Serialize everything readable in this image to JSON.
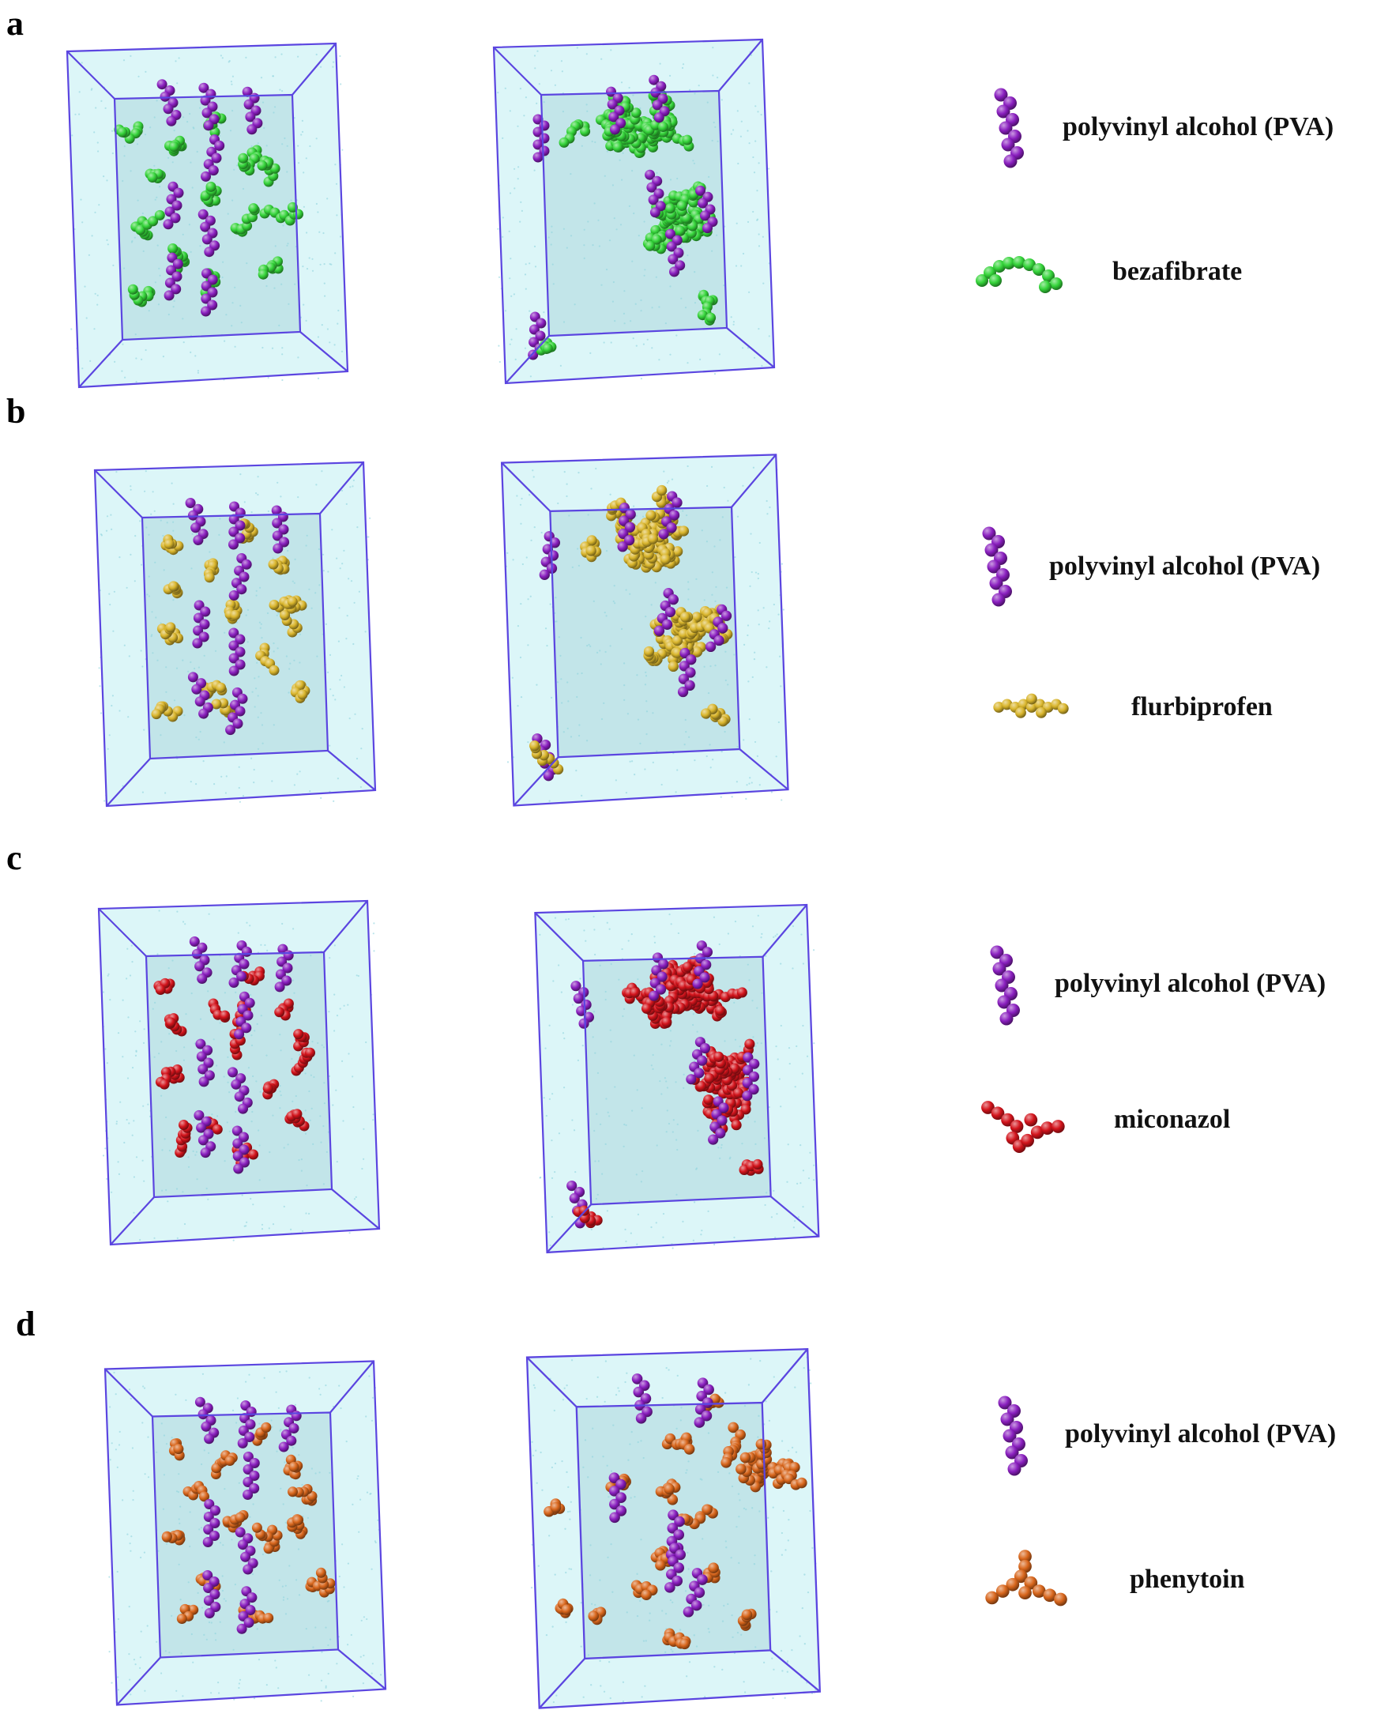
{
  "panels": [
    {
      "label": "a",
      "legend": {
        "polymer": "polyvinyl alcohol (PVA)",
        "drug": "bezafibrate"
      },
      "colors": {
        "polymer": "#8a1fbf",
        "drug": "#35d43a"
      }
    },
    {
      "label": "b",
      "legend": {
        "polymer": "polyvinyl alcohol (PVA)",
        "drug": "flurbiprofen"
      },
      "colors": {
        "polymer": "#8a1fbf",
        "drug": "#d9b52c"
      }
    },
    {
      "label": "c",
      "legend": {
        "polymer": "polyvinyl alcohol (PVA)",
        "drug": "miconazol"
      },
      "colors": {
        "polymer": "#8a1fbf",
        "drug": "#d3141c"
      }
    },
    {
      "label": "d",
      "legend": {
        "polymer": "polyvinyl alcohol (PVA)",
        "drug": "phenytoin"
      },
      "colors": {
        "polymer": "#8a1fbf",
        "drug": "#d8661c"
      }
    }
  ],
  "box_edge_color": "#5b45e0",
  "water_color": "#bfeef2"
}
